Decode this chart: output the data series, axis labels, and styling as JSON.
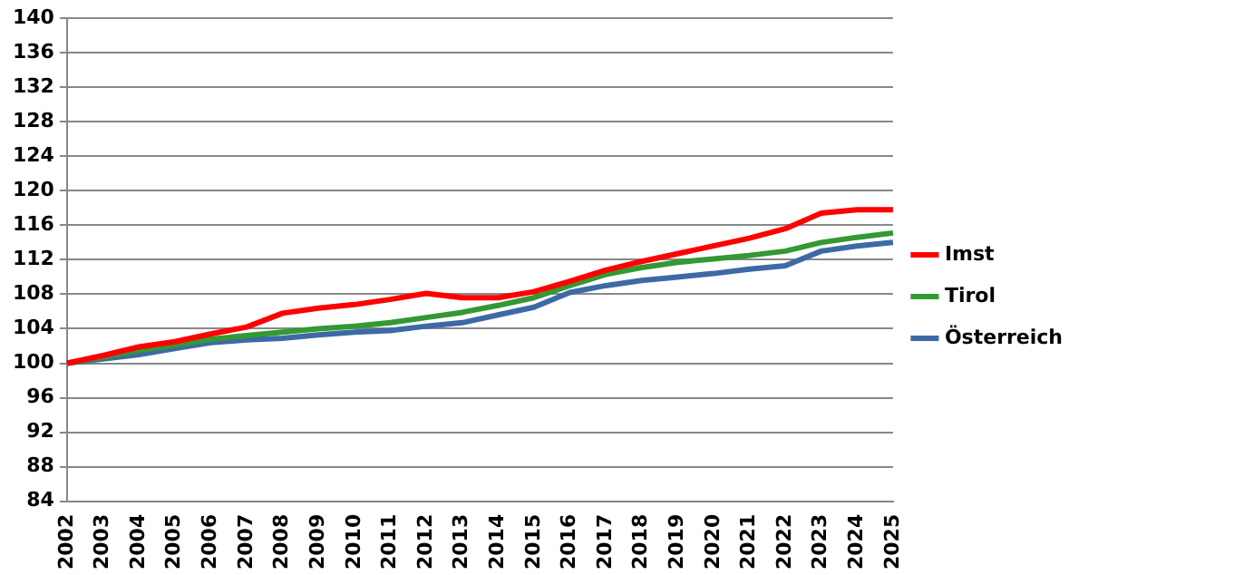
{
  "chart_data": {
    "type": "line",
    "categories": [
      "2002",
      "2003",
      "2004",
      "2005",
      "2006",
      "2007",
      "2008",
      "2009",
      "2010",
      "2011",
      "2012",
      "2013",
      "2014",
      "2015",
      "2016",
      "2017",
      "2018",
      "2019",
      "2020",
      "2021",
      "2022",
      "2023",
      "2024",
      "2025"
    ],
    "series": [
      {
        "name": "Imst",
        "color": "#ff0000",
        "values": [
          100,
          100.9,
          101.9,
          102.5,
          103.4,
          104.2,
          105.8,
          106.4,
          106.8,
          107.4,
          108.1,
          107.6,
          107.6,
          108.3,
          109.5,
          110.8,
          111.8,
          112.7,
          113.6,
          114.5,
          115.6,
          117.4,
          117.8,
          117.8
        ]
      },
      {
        "name": "Tirol",
        "color": "#339933",
        "values": [
          100,
          100.7,
          101.5,
          102.1,
          102.8,
          103.2,
          103.6,
          104.0,
          104.3,
          104.7,
          105.3,
          105.9,
          106.7,
          107.6,
          109.0,
          110.3,
          111.1,
          111.7,
          112.1,
          112.5,
          113.0,
          114.0,
          114.6,
          115.1
        ]
      },
      {
        "name": "Österreich",
        "color": "#3d6aa5",
        "values": [
          100,
          100.5,
          101.0,
          101.7,
          102.4,
          102.7,
          102.9,
          103.3,
          103.6,
          103.8,
          104.3,
          104.7,
          105.6,
          106.5,
          108.2,
          109.0,
          109.6,
          110.0,
          110.4,
          110.9,
          111.3,
          113.0,
          113.6,
          114.0
        ]
      }
    ],
    "ylim": [
      84,
      140
    ],
    "yticks": [
      84,
      88,
      92,
      96,
      100,
      104,
      108,
      112,
      116,
      120,
      124,
      128,
      132,
      136,
      140
    ],
    "grid": "y",
    "legend": "right",
    "marker": "none",
    "line_style": "solid"
  }
}
